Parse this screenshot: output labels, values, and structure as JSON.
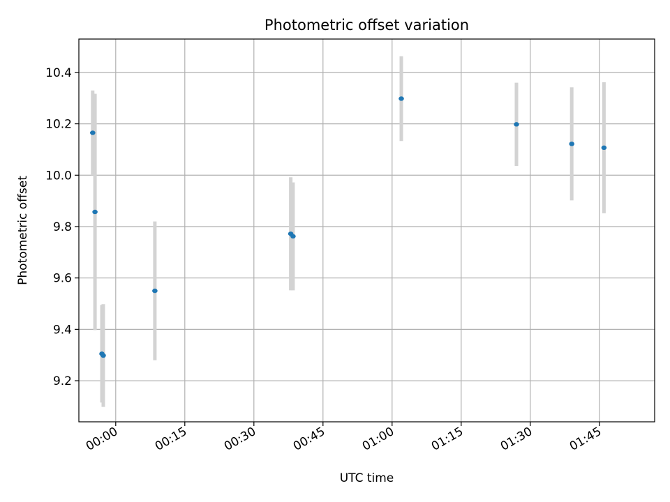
{
  "chart_data": {
    "type": "scatter",
    "title": "Photometric offset variation",
    "xlabel": "UTC time",
    "ylabel": "Photometric offset",
    "x_unit": "UTC time (HH:MM)",
    "xlim": [
      "23:52",
      "01:57"
    ],
    "ylim": [
      9.04,
      10.53
    ],
    "x_ticks": [
      "00:00",
      "00:15",
      "00:30",
      "00:45",
      "01:00",
      "01:15",
      "01:30",
      "01:45"
    ],
    "y_ticks": [
      9.2,
      9.4,
      9.6,
      9.8,
      10.0,
      10.2,
      10.4
    ],
    "y_tick_labels": [
      "9.2",
      "9.4",
      "9.6",
      "9.8",
      "10.0",
      "10.2",
      "10.4"
    ],
    "grid": true,
    "legend": "none",
    "colors": {
      "point": "#1f77b4",
      "errorbar": "#d3d3d3",
      "grid": "#b0b0b0"
    },
    "points": [
      {
        "x": "23:55:00",
        "y": 10.165,
        "yerr": 0.165
      },
      {
        "x": "23:55:30",
        "y": 9.857,
        "yerr": 0.46
      },
      {
        "x": "23:57:00",
        "y": 9.305,
        "yerr": 0.19
      },
      {
        "x": "23:57:18",
        "y": 9.298,
        "yerr": 0.2
      },
      {
        "x": "00:08:30",
        "y": 9.55,
        "yerr": 0.27
      },
      {
        "x": "00:38:00",
        "y": 9.772,
        "yerr": 0.22
      },
      {
        "x": "00:38:30",
        "y": 9.762,
        "yerr": 0.21
      },
      {
        "x": "01:02:00",
        "y": 10.298,
        "yerr": 0.165
      },
      {
        "x": "01:27:00",
        "y": 10.198,
        "yerr": 0.162
      },
      {
        "x": "01:39:00",
        "y": 10.122,
        "yerr": 0.22
      },
      {
        "x": "01:46:00",
        "y": 10.107,
        "yerr": 0.255
      }
    ]
  }
}
